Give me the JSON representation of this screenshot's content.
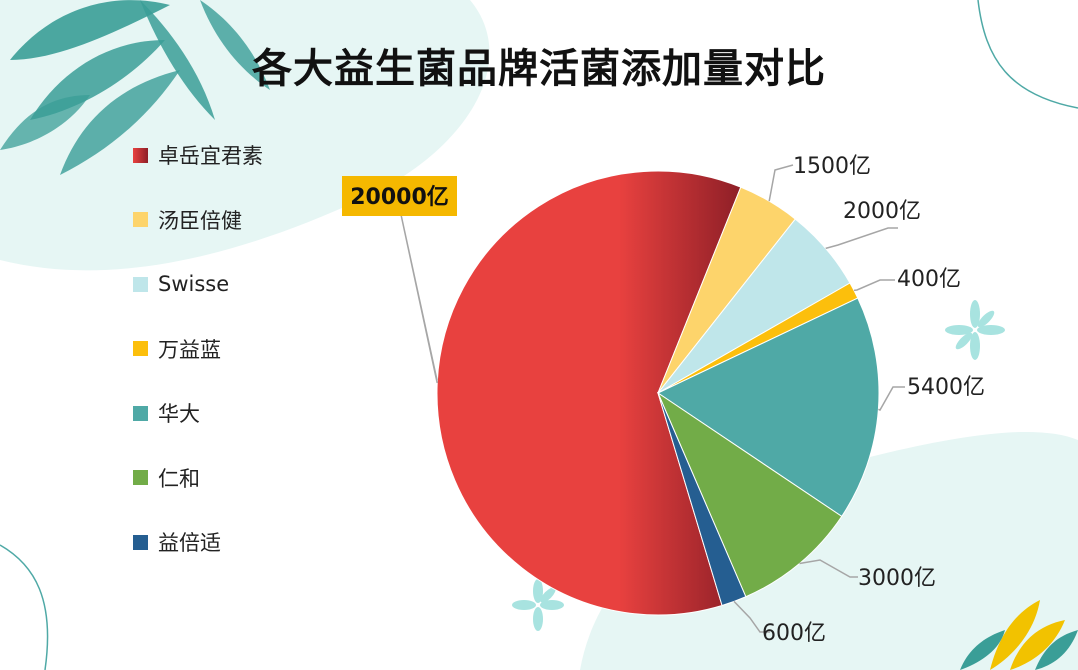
{
  "chart_data": {
    "type": "pie",
    "title": "各大益生菌品牌活菌添加量对比",
    "legend_position": "left",
    "slices": [
      {
        "name": "卓岳宜君素",
        "value": 20000,
        "label": "20000亿",
        "color": "#e8413f",
        "color_dark": "#8e1f27",
        "highlight": true
      },
      {
        "name": "汤臣倍健",
        "value": 1500,
        "label": "1500亿",
        "color": "#fdd46b"
      },
      {
        "name": "Swisse",
        "value": 2000,
        "label": "2000亿",
        "color": "#bfe6ea"
      },
      {
        "name": "万益蓝",
        "value": 400,
        "label": "400亿",
        "color": "#fcbf0c"
      },
      {
        "name": "华大",
        "value": 5400,
        "label": "5400亿",
        "color": "#4fa9a6"
      },
      {
        "name": "仁和",
        "value": 3000,
        "label": "3000亿",
        "color": "#72ac48"
      },
      {
        "name": "益倍适",
        "value": 600,
        "label": "600亿",
        "color": "#255e91"
      }
    ],
    "colors": {
      "callout_bg": "#f5b800",
      "leader_line": "#a6a6a6",
      "decor_teal": "#3a9e97",
      "decor_mint": "#e6f6f4"
    }
  }
}
